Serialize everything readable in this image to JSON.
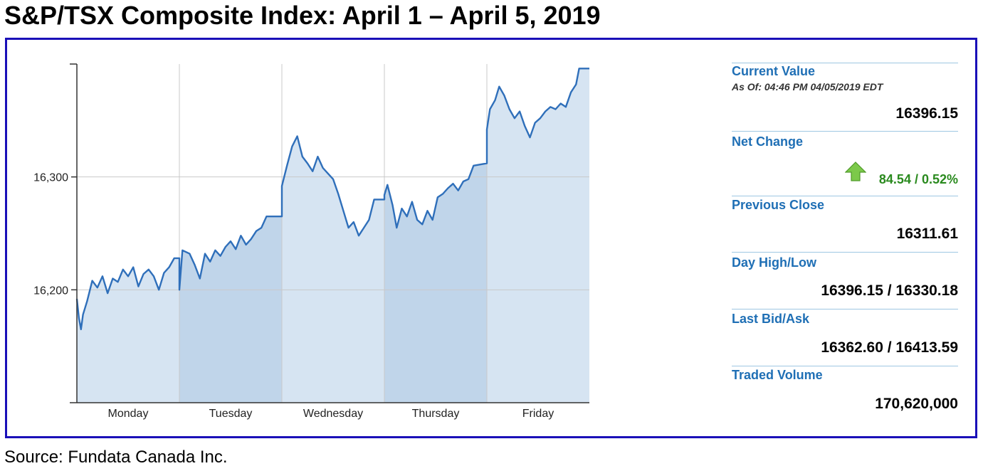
{
  "page": {
    "title": "S&P/TSX Composite Index: April 1 – April 5, 2019",
    "source": "Source: Fundata Canada Inc."
  },
  "colors": {
    "frame_border": "#1a10b8",
    "line": "#2f6fba",
    "fill_light": "#d6e4f2",
    "fill_dark": "#c0d5ea",
    "label_blue": "#1f6fb5",
    "change_green": "#2a8a1e"
  },
  "stats": {
    "current_value_label": "Current Value",
    "as_of": "As Of: 04:46 PM 04/05/2019 EDT",
    "current_value": "16396.15",
    "net_change_label": "Net Change",
    "net_change_icon": "up-arrow-icon",
    "net_change": "84.54 / 0.52%",
    "previous_close_label": "Previous Close",
    "previous_close": "16311.61",
    "day_high_low_label": "Day High/Low",
    "day_high_low": "16396.15 / 16330.18",
    "last_bid_ask_label": "Last Bid/Ask",
    "last_bid_ask": "16362.60 / 16413.59",
    "traded_volume_label": "Traded Volume",
    "traded_volume": "170,620,000"
  },
  "chart_data": {
    "type": "area",
    "title": "",
    "xlabel": "",
    "ylabel": "",
    "categories": [
      "Monday",
      "Tuesday",
      "Wednesday",
      "Thursday",
      "Friday"
    ],
    "ylim": [
      16100,
      16400
    ],
    "yticks": [
      16200,
      16300
    ],
    "ytick_labels": [
      "16,200",
      "16,300"
    ],
    "grid": true,
    "x_unit": "trading day index (0 = Monday open, 5 = Friday close)",
    "series": [
      {
        "values": [
          [
            0.0,
            16192
          ],
          [
            0.02,
            16175
          ],
          [
            0.04,
            16165
          ],
          [
            0.06,
            16178
          ],
          [
            0.1,
            16190
          ],
          [
            0.15,
            16208
          ],
          [
            0.2,
            16202
          ],
          [
            0.25,
            16212
          ],
          [
            0.3,
            16197
          ],
          [
            0.35,
            16210
          ],
          [
            0.4,
            16207
          ],
          [
            0.45,
            16218
          ],
          [
            0.5,
            16212
          ],
          [
            0.55,
            16220
          ],
          [
            0.6,
            16203
          ],
          [
            0.65,
            16214
          ],
          [
            0.7,
            16218
          ],
          [
            0.75,
            16212
          ],
          [
            0.8,
            16200
          ],
          [
            0.85,
            16215
          ],
          [
            0.9,
            16220
          ],
          [
            0.95,
            16228
          ],
          [
            1.0,
            16228
          ],
          [
            1.0,
            16200
          ],
          [
            1.03,
            16235
          ],
          [
            1.1,
            16232
          ],
          [
            1.15,
            16222
          ],
          [
            1.2,
            16210
          ],
          [
            1.25,
            16232
          ],
          [
            1.3,
            16225
          ],
          [
            1.35,
            16235
          ],
          [
            1.4,
            16230
          ],
          [
            1.45,
            16238
          ],
          [
            1.5,
            16243
          ],
          [
            1.55,
            16236
          ],
          [
            1.6,
            16248
          ],
          [
            1.65,
            16240
          ],
          [
            1.7,
            16245
          ],
          [
            1.75,
            16252
          ],
          [
            1.8,
            16255
          ],
          [
            1.85,
            16265
          ],
          [
            1.9,
            16265
          ],
          [
            2.0,
            16265
          ],
          [
            2.0,
            16292
          ],
          [
            2.05,
            16310
          ],
          [
            2.1,
            16327
          ],
          [
            2.15,
            16336
          ],
          [
            2.2,
            16318
          ],
          [
            2.25,
            16312
          ],
          [
            2.3,
            16305
          ],
          [
            2.35,
            16318
          ],
          [
            2.4,
            16308
          ],
          [
            2.45,
            16303
          ],
          [
            2.5,
            16298
          ],
          [
            2.55,
            16285
          ],
          [
            2.6,
            16270
          ],
          [
            2.65,
            16255
          ],
          [
            2.7,
            16260
          ],
          [
            2.75,
            16248
          ],
          [
            2.8,
            16255
          ],
          [
            2.85,
            16262
          ],
          [
            2.9,
            16280
          ],
          [
            3.0,
            16280
          ],
          [
            3.0,
            16284
          ],
          [
            3.03,
            16293
          ],
          [
            3.08,
            16275
          ],
          [
            3.12,
            16255
          ],
          [
            3.17,
            16272
          ],
          [
            3.22,
            16265
          ],
          [
            3.27,
            16278
          ],
          [
            3.32,
            16262
          ],
          [
            3.37,
            16258
          ],
          [
            3.42,
            16270
          ],
          [
            3.47,
            16262
          ],
          [
            3.52,
            16282
          ],
          [
            3.57,
            16285
          ],
          [
            3.62,
            16290
          ],
          [
            3.67,
            16294
          ],
          [
            3.72,
            16288
          ],
          [
            3.77,
            16296
          ],
          [
            3.82,
            16298
          ],
          [
            3.87,
            16310
          ],
          [
            4.0,
            16312
          ],
          [
            4.0,
            16342
          ],
          [
            4.03,
            16360
          ],
          [
            4.08,
            16368
          ],
          [
            4.12,
            16380
          ],
          [
            4.17,
            16372
          ],
          [
            4.22,
            16360
          ],
          [
            4.27,
            16352
          ],
          [
            4.32,
            16358
          ],
          [
            4.37,
            16345
          ],
          [
            4.42,
            16335
          ],
          [
            4.47,
            16348
          ],
          [
            4.52,
            16352
          ],
          [
            4.57,
            16358
          ],
          [
            4.62,
            16362
          ],
          [
            4.67,
            16360
          ],
          [
            4.72,
            16365
          ],
          [
            4.77,
            16362
          ],
          [
            4.82,
            16375
          ],
          [
            4.87,
            16382
          ],
          [
            4.9,
            16396
          ],
          [
            5.0,
            16396
          ]
        ]
      }
    ]
  }
}
